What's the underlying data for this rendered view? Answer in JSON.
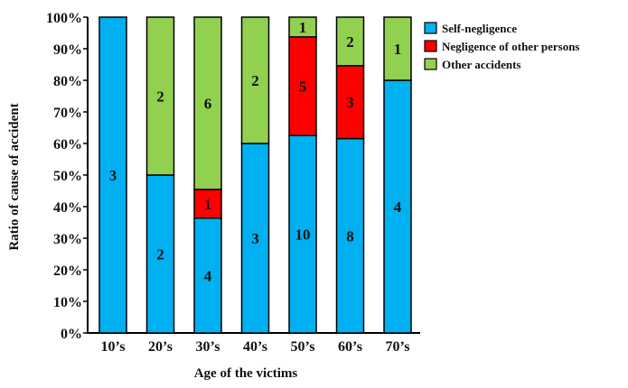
{
  "chart_data": {
    "type": "bar",
    "stacked": true,
    "normalized": true,
    "xlabel": "Age of the victims",
    "ylabel": "Ratio of cause of accident",
    "ylim": [
      0,
      100
    ],
    "yticks": [
      0,
      10,
      20,
      30,
      40,
      50,
      60,
      70,
      80,
      90,
      100
    ],
    "ytick_suffix": "%",
    "categories": [
      "10’s",
      "20’s",
      "30’s",
      "40’s",
      "50’s",
      "60’s",
      "70’s"
    ],
    "series": [
      {
        "name": "Self-negligence",
        "color": "#00B0F0",
        "values": [
          3,
          2,
          4,
          3,
          10,
          8,
          4
        ]
      },
      {
        "name": "Negligence of other persons",
        "color": "#FF0000",
        "values": [
          0,
          0,
          1,
          0,
          5,
          3,
          0
        ]
      },
      {
        "name": "Other accidents",
        "color": "#92D050",
        "values": [
          0,
          2,
          6,
          2,
          1,
          2,
          1
        ]
      }
    ],
    "legend_position": "top-right",
    "grid": false
  }
}
